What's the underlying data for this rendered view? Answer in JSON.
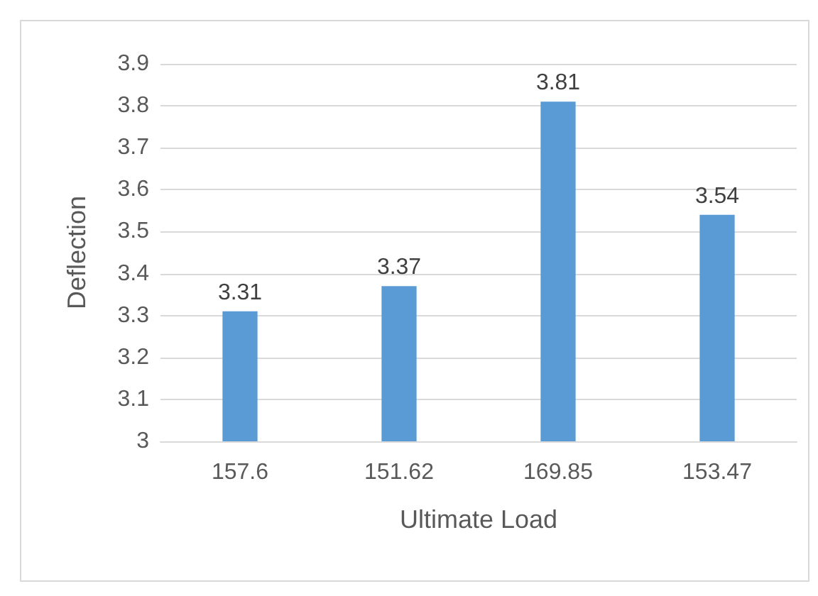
{
  "chart_data": {
    "type": "bar",
    "xlabel": "Ultimate Load",
    "ylabel": "Deflection",
    "categories": [
      "157.6",
      "151.62",
      "169.85",
      "153.47"
    ],
    "values": [
      3.31,
      3.37,
      3.81,
      3.54
    ],
    "color": "#5b9bd5",
    "ylim": [
      3,
      3.9
    ],
    "yticks": [
      3,
      3.1,
      3.2,
      3.3,
      3.4,
      3.5,
      3.6,
      3.7,
      3.8,
      3.9
    ],
    "grid": "y",
    "data_labels": true
  }
}
